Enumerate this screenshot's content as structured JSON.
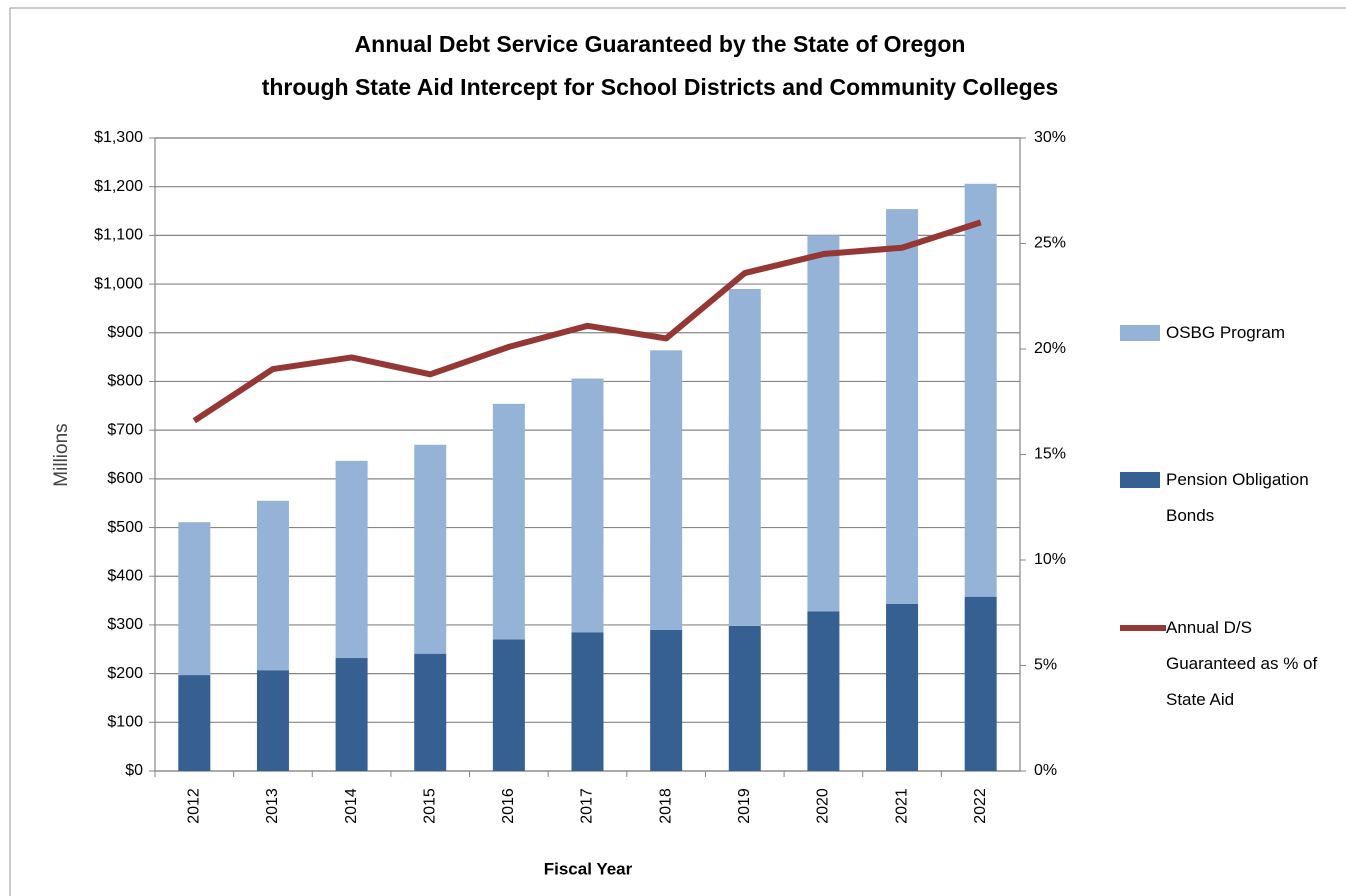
{
  "chart_data": {
    "type": "bar",
    "stacked": true,
    "title": [
      "Annual Debt Service Guaranteed by the State of Oregon",
      "through State Aid Intercept for School Districts and Community Colleges"
    ],
    "x_label": "Fiscal Year",
    "y_label": "Millions",
    "categories": [
      "2012",
      "2013",
      "2014",
      "2015",
      "2016",
      "2017",
      "2018",
      "2019",
      "2020",
      "2021",
      "2022"
    ],
    "series": [
      {
        "name": "OSBG Program",
        "color": "#95b3d7",
        "values": [
          314,
          348,
          405,
          429,
          484,
          521,
          574,
          692,
          772,
          811,
          848
        ]
      },
      {
        "name": "Pension Obligation Bonds",
        "color": "#366092",
        "values": [
          197,
          207,
          232,
          241,
          270,
          285,
          290,
          298,
          328,
          343,
          358
        ]
      },
      {
        "name": "Annual D/S Guaranteed as % of State Aid",
        "color": "#953735",
        "axis": "y2",
        "values": [
          16.6,
          19.05,
          19.6,
          18.8,
          20.1,
          21.1,
          20.5,
          23.6,
          24.5,
          24.8,
          26.0
        ]
      }
    ],
    "ylim": [
      0,
      1300
    ],
    "yticks": [
      {
        "value": 0,
        "label": "$0"
      },
      {
        "value": 100,
        "label": "$100"
      },
      {
        "value": 200,
        "label": "$200"
      },
      {
        "value": 300,
        "label": "$300"
      },
      {
        "value": 400,
        "label": "$400"
      },
      {
        "value": 500,
        "label": "$500"
      },
      {
        "value": 600,
        "label": "$600"
      },
      {
        "value": 700,
        "label": "$700"
      },
      {
        "value": 800,
        "label": "$800"
      },
      {
        "value": 900,
        "label": "$900"
      },
      {
        "value": 1000,
        "label": "$1,000"
      },
      {
        "value": 1100,
        "label": "$1,100"
      },
      {
        "value": 1200,
        "label": "$1,200"
      },
      {
        "value": 1300,
        "label": "$1,300"
      }
    ],
    "y2lim": [
      0,
      30
    ],
    "y2ticks": [
      {
        "value": 0,
        "label": "0%"
      },
      {
        "value": 5,
        "label": "5%"
      },
      {
        "value": 10,
        "label": "10%"
      },
      {
        "value": 15,
        "label": "15%"
      },
      {
        "value": 20,
        "label": "20%"
      },
      {
        "value": 25,
        "label": "25%"
      },
      {
        "value": 30,
        "label": "30%"
      }
    ],
    "grid": true,
    "legend": "right"
  }
}
